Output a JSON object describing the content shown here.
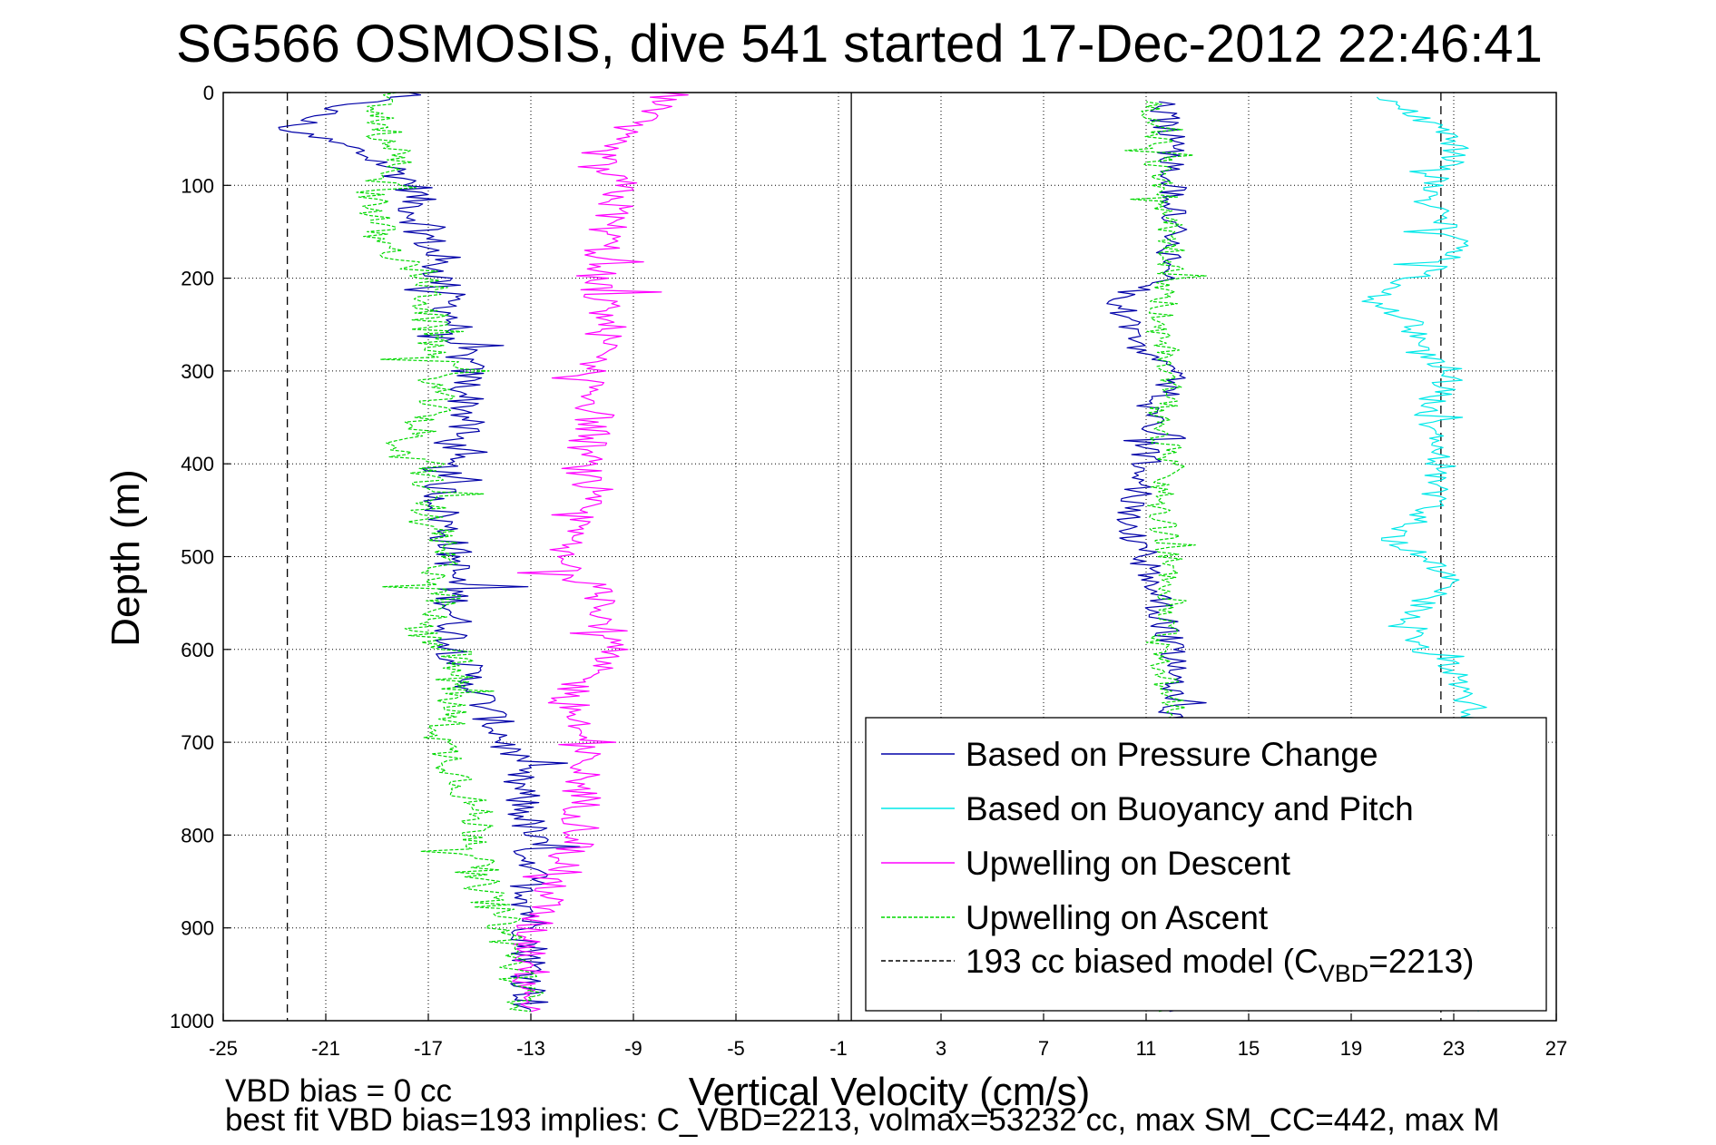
{
  "chart_data": {
    "type": "line",
    "title": "SG566 OSMOSIS, dive 541 started 17-Dec-2012 22:46:41",
    "xlabel": "Vertical Velocity (cm/s)",
    "ylabel": "Depth (m)",
    "xlim": [
      -25,
      27
    ],
    "ylim": [
      0,
      1000
    ],
    "y_reversed": true,
    "grid": true,
    "x_ticks": [
      -25,
      -21,
      -17,
      -13,
      -9,
      -5,
      -1,
      3,
      7,
      11,
      15,
      19,
      23,
      27
    ],
    "y_ticks": [
      0,
      100,
      200,
      300,
      400,
      500,
      600,
      700,
      800,
      900,
      1000
    ],
    "legend_position": "bottom-right",
    "legend": [
      {
        "label": "Based on Pressure Change",
        "color": "#0000a8",
        "style": "solid"
      },
      {
        "label": "Based on Buoyancy and Pitch",
        "color": "#00e8e8",
        "style": "solid"
      },
      {
        "label": "Upwelling on Descent",
        "color": "#ff00ff",
        "style": "solid"
      },
      {
        "label": "Upwelling on Ascent",
        "color": "#00d800",
        "style": "dashed"
      },
      {
        "label": "193 cc biased model (C",
        "sub": "VBD",
        "suffix": "=2213)",
        "color": "#000000",
        "style": "dashed"
      }
    ],
    "series": [
      {
        "name": "Based on Pressure Change",
        "color": "#0000a8",
        "descent": {
          "depth": [
            0,
            20,
            40,
            60,
            80,
            100,
            130,
            160,
            200,
            250,
            300,
            350,
            400,
            450,
            500,
            550,
            600,
            650,
            700,
            750,
            800,
            850,
            900,
            950,
            990
          ],
          "velocity": [
            -18,
            -21,
            -22.5,
            -20,
            -18.5,
            -17.5,
            -17.5,
            -17,
            -16.5,
            -16,
            -15.5,
            -15.5,
            -16.5,
            -16.5,
            -16,
            -16,
            -16,
            -15,
            -14,
            -13.5,
            -13,
            -13,
            -13,
            -13,
            -13
          ]
        },
        "ascent": {
          "depth": [
            990,
            950,
            900,
            850,
            800,
            750,
            700,
            680,
            650,
            600,
            550,
            500,
            470,
            450,
            400,
            380,
            350,
            300,
            280,
            250,
            220,
            200,
            180,
            150,
            100,
            50,
            10
          ],
          "velocity": [
            12,
            12,
            12,
            12,
            12,
            12,
            12,
            12,
            12,
            12,
            11.5,
            11,
            10.3,
            10.5,
            11,
            11,
            11.5,
            12,
            10.8,
            10.2,
            10,
            11.5,
            12,
            12,
            12,
            12,
            11.5
          ]
        }
      },
      {
        "name": "Based on Buoyancy and Pitch",
        "color": "#00e8e8",
        "ascent": {
          "depth": [
            990,
            950,
            900,
            850,
            800,
            750,
            700,
            680,
            650,
            620,
            600,
            560,
            520,
            480,
            450,
            400,
            380,
            340,
            300,
            280,
            250,
            225,
            200,
            180,
            150,
            120,
            100,
            70,
            50,
            20,
            5
          ],
          "velocity": [
            24,
            24,
            24,
            24,
            24,
            24,
            24,
            24,
            23.5,
            23,
            21.5,
            21.5,
            23,
            20.5,
            22,
            22.5,
            22,
            22,
            23,
            21.5,
            21.5,
            19.5,
            21.5,
            23,
            23,
            22,
            22,
            23,
            23,
            21,
            20
          ]
        }
      },
      {
        "name": "Upwelling on Descent",
        "color": "#ff00ff",
        "descent": {
          "depth": [
            0,
            20,
            50,
            80,
            100,
            150,
            200,
            250,
            300,
            350,
            400,
            450,
            500,
            550,
            600,
            650,
            700,
            750,
            800,
            850,
            900,
            950,
            990
          ],
          "velocity": [
            -7.5,
            -8.5,
            -10,
            -10.5,
            -9.5,
            -10,
            -10.5,
            -10,
            -10.5,
            -10.5,
            -11,
            -11,
            -12,
            -10,
            -10,
            -11.5,
            -11,
            -11,
            -11,
            -12,
            -13,
            -13,
            -13
          ]
        }
      },
      {
        "name": "Upwelling on Ascent",
        "color": "#00d800",
        "descent": {
          "depth": [
            0,
            20,
            50,
            80,
            100,
            130,
            160,
            200,
            250,
            300,
            350,
            390,
            400,
            450,
            500,
            550,
            580,
            600,
            650,
            700,
            750,
            800,
            850,
            900,
            950,
            990
          ],
          "velocity": [
            -19,
            -19,
            -18.5,
            -18,
            -19,
            -19,
            -19,
            -17,
            -17,
            -16.5,
            -17,
            -18.5,
            -17,
            -17,
            -16.5,
            -16.5,
            -17.5,
            -16,
            -16,
            -16.5,
            -15.5,
            -15,
            -15,
            -14,
            -13.5,
            -13
          ]
        },
        "ascent": {
          "depth": [
            990,
            950,
            900,
            850,
            800,
            750,
            700,
            680,
            650,
            600,
            550,
            500,
            450,
            400,
            350,
            300,
            250,
            200,
            150,
            100,
            50,
            10
          ],
          "velocity": [
            12,
            12,
            12,
            12,
            12,
            12,
            12,
            12,
            12,
            11.5,
            12,
            12,
            11.5,
            12,
            11.5,
            12,
            11.5,
            12,
            12,
            11.5,
            11.5,
            11
          ]
        }
      }
    ],
    "reference_lines": [
      {
        "x": -22.5,
        "style": "dashed",
        "color": "#000000"
      },
      {
        "x": 22.5,
        "style": "dashed",
        "color": "#000000"
      },
      {
        "x": -0.5,
        "style": "solid",
        "color": "#000000"
      }
    ]
  },
  "footer": {
    "line1": "VBD bias = 0 cc",
    "line2": "best fit VBD bias=193 implies: C_VBD=2213, volmax=53232 cc, max SM_CC=442, max M"
  }
}
